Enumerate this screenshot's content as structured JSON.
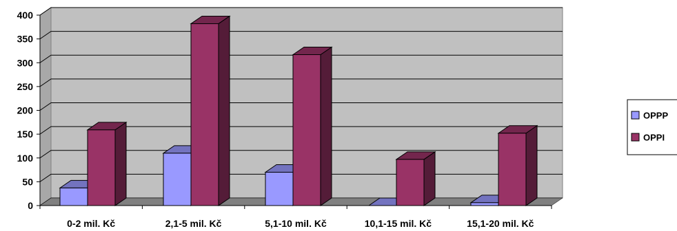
{
  "chart_data": {
    "type": "bar",
    "style": "3d-clustered-column",
    "categories": [
      "0-2 mil. Kč",
      "2,1-5 mil. Kč",
      "5,1-10 mil. Kč",
      "10,1-15 mil. Kč",
      "15,1-20 mil. Kč"
    ],
    "series": [
      {
        "name": "OPPP",
        "values": [
          37,
          110,
          70,
          0,
          6
        ],
        "color": "#9999ff"
      },
      {
        "name": "OPPI",
        "values": [
          159,
          382,
          317,
          97,
          152
        ],
        "color": "#993366"
      }
    ],
    "title": "",
    "xlabel": "",
    "ylabel": "",
    "ylim": [
      0,
      400
    ],
    "yticks": [
      0,
      50,
      100,
      150,
      200,
      250,
      300,
      350,
      400
    ],
    "grid": true,
    "legend_position": "right",
    "colors": {
      "plot_background": "#c0c0c0",
      "floor": "#808080",
      "gridline": "#000000"
    }
  }
}
